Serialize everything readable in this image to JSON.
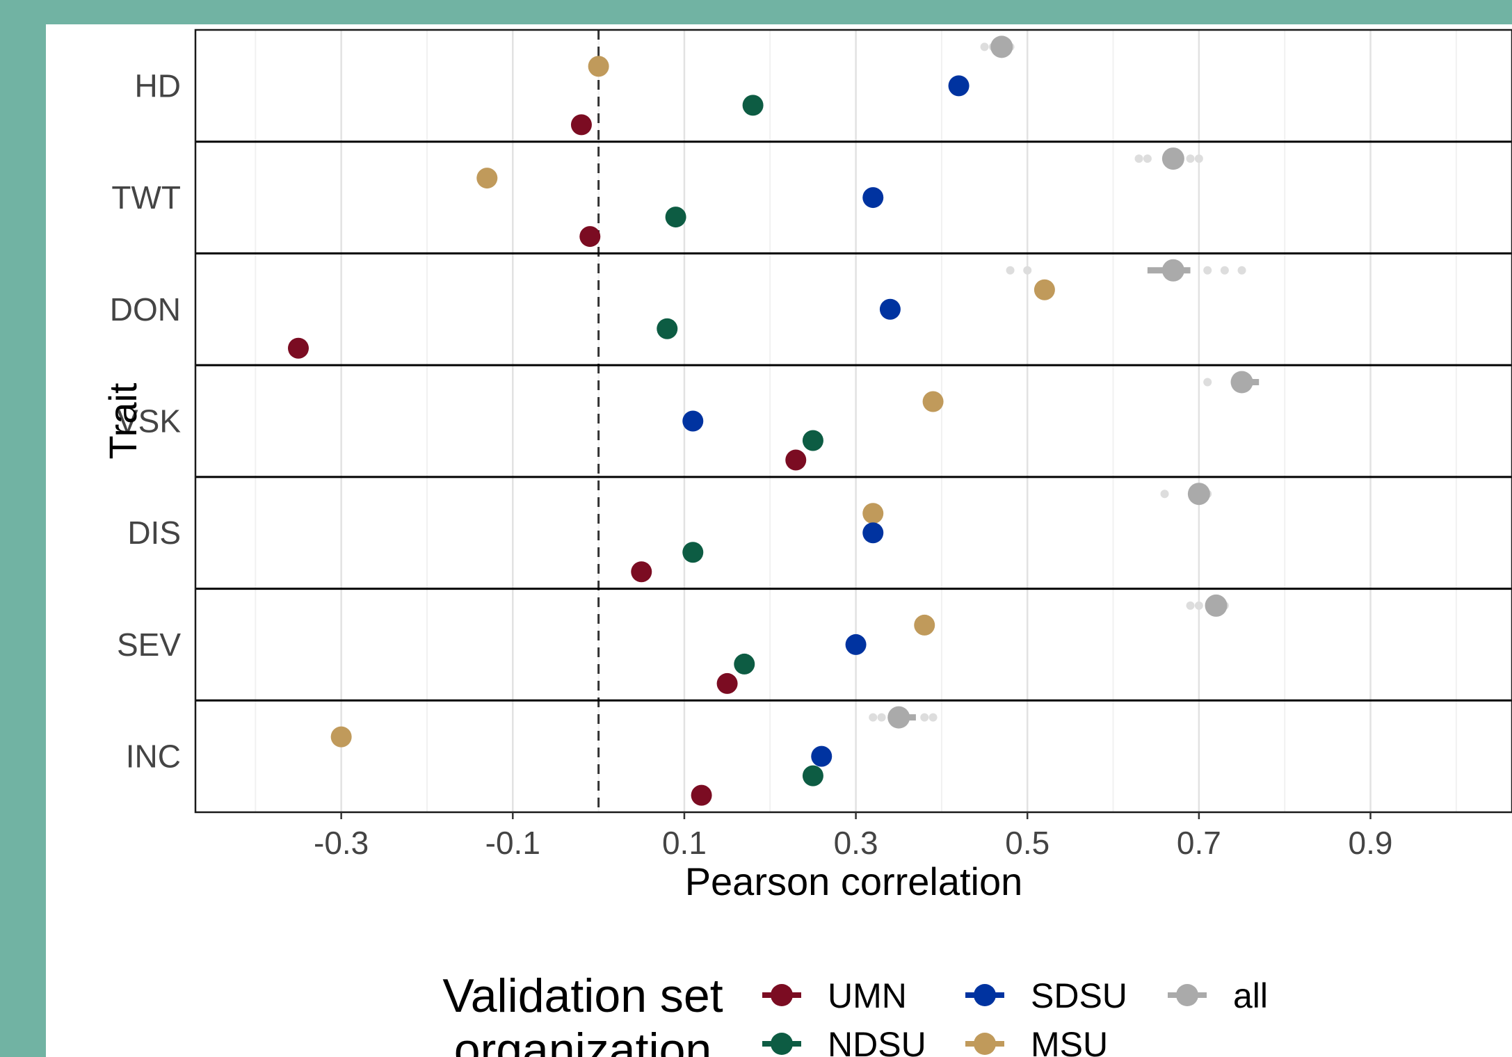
{
  "chart_data": {
    "type": "scatter",
    "xlabel": "Pearson correlation",
    "ylabel": "Trait",
    "xlim": [
      -0.47,
      1.065
    ],
    "xticks": [
      -0.3,
      -0.1,
      0.1,
      0.3,
      0.5,
      0.7,
      0.9
    ],
    "xtick_labels": [
      "-0.3",
      "-0.1",
      "0.1",
      "0.3",
      "0.5",
      "0.7",
      "0.9"
    ],
    "reference_line": 0.0,
    "grid": true,
    "legend_position": "bottom",
    "legend_title": "Validation set organization",
    "legend_title_lines": [
      "Validation set",
      "organization"
    ],
    "categories": [
      "HD",
      "TWT",
      "DON",
      "VSK",
      "DIS",
      "SEV",
      "INC"
    ],
    "series": [
      {
        "name": "UMN",
        "color": "#7b0c22",
        "values": [
          -0.02,
          -0.01,
          -0.35,
          0.23,
          0.05,
          0.15,
          0.12
        ]
      },
      {
        "name": "NDSU",
        "color": "#0d5c43",
        "values": [
          0.18,
          0.09,
          0.08,
          0.25,
          0.11,
          0.17,
          0.25
        ]
      },
      {
        "name": "SDSU",
        "color": "#0033a0",
        "values": [
          0.42,
          0.32,
          0.34,
          0.11,
          0.32,
          0.3,
          0.26
        ]
      },
      {
        "name": "MSU",
        "color": "#c09a5b",
        "values": [
          0.0,
          -0.13,
          0.52,
          0.39,
          0.32,
          0.38,
          -0.3
        ]
      },
      {
        "name": "all",
        "color": "#aaaaaa",
        "values": [
          0.47,
          0.67,
          0.67,
          0.75,
          0.7,
          0.72,
          0.35
        ],
        "interval_low": [
          0.46,
          0.66,
          0.64,
          0.74,
          0.69,
          0.71,
          0.34
        ],
        "interval_high": [
          0.48,
          0.68,
          0.69,
          0.77,
          0.71,
          0.73,
          0.37
        ],
        "replicates": [
          [
            0.45,
            0.46,
            0.47,
            0.48
          ],
          [
            0.63,
            0.64,
            0.67,
            0.69,
            0.7
          ],
          [
            0.48,
            0.5,
            0.71,
            0.73,
            0.75
          ],
          [
            0.71,
            0.76
          ],
          [
            0.66,
            0.71
          ],
          [
            0.69,
            0.7,
            0.73
          ],
          [
            0.32,
            0.33,
            0.38,
            0.39
          ]
        ]
      }
    ]
  }
}
